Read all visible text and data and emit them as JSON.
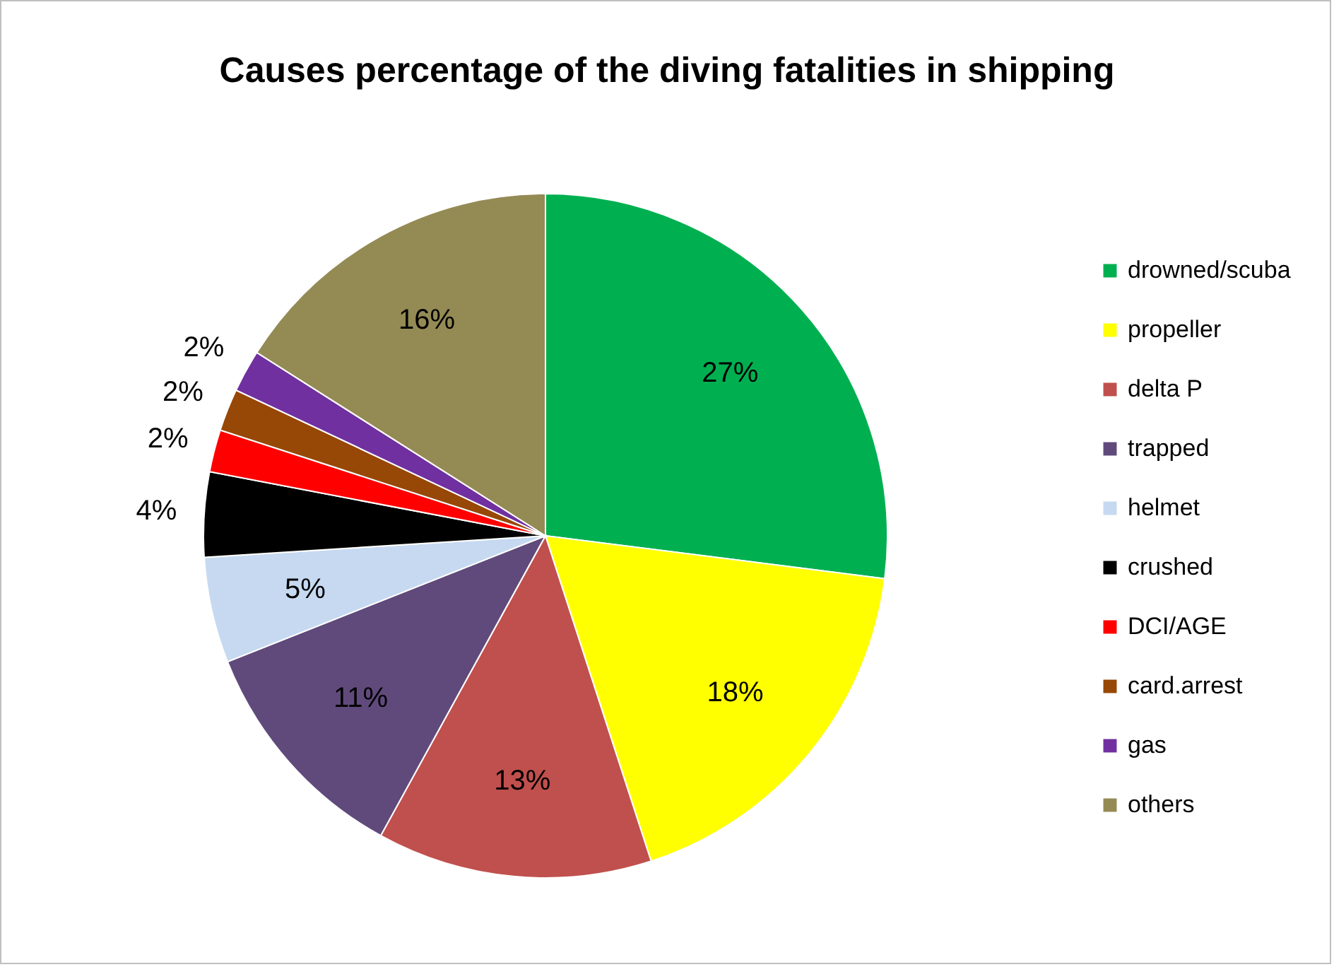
{
  "chart_data": {
    "type": "pie",
    "title": "Causes percentage of the diving fatalities in shipping",
    "categories": [
      "drowned/scuba",
      "propeller",
      "delta P",
      "trapped",
      "helmet",
      "crushed",
      "DCI/AGE",
      "card.arrest",
      "gas",
      "others"
    ],
    "values": [
      27,
      18,
      13,
      11,
      5,
      4,
      2,
      2,
      2,
      16
    ],
    "colors": [
      "#00b050",
      "#ffff00",
      "#c0504d",
      "#604a7b",
      "#c6d9f1",
      "#000000",
      "#ff0000",
      "#974706",
      "#7030a0",
      "#948a54"
    ],
    "value_labels": [
      "27%",
      "18%",
      "13%",
      "11%",
      "5%",
      "4%",
      "2%",
      "2%",
      "2%",
      "16%"
    ],
    "legend": "right"
  }
}
